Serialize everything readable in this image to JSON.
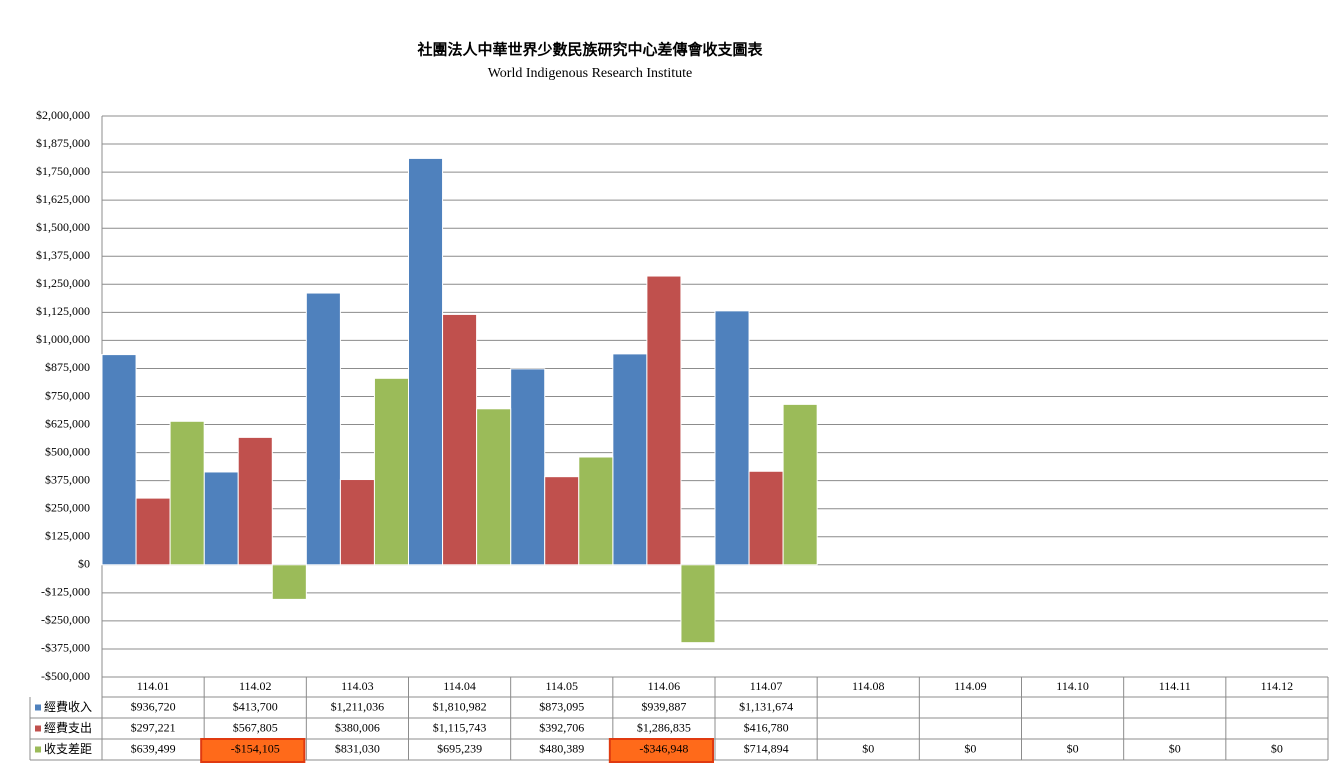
{
  "chart_data": {
    "type": "bar",
    "title": "社團法人中華世界少數民族研究中心差傳會收支圖表",
    "subtitle": "World Indigenous Research Institute",
    "categories": [
      "114.01",
      "114.02",
      "114.03",
      "114.04",
      "114.05",
      "114.06",
      "114.07",
      "114.08",
      "114.09",
      "114.10",
      "114.11",
      "114.12"
    ],
    "series": [
      {
        "name": "經費收入",
        "color": "#4f81bd",
        "values": [
          936720,
          413700,
          1211036,
          1810982,
          873095,
          939887,
          1131674,
          null,
          null,
          null,
          null,
          null
        ],
        "value_labels": [
          "$936,720",
          "$413,700",
          "$1,211,036",
          "$1,810,982",
          "$873,095",
          "$939,887",
          "$1,131,674",
          null,
          null,
          null,
          null,
          null
        ]
      },
      {
        "name": "經費支出",
        "color": "#c0504d",
        "values": [
          297221,
          567805,
          380006,
          1115743,
          392706,
          1286835,
          416780,
          null,
          null,
          null,
          null,
          null
        ],
        "value_labels": [
          "$297,221",
          "$567,805",
          "$380,006",
          "$1,115,743",
          "$392,706",
          "$1,286,835",
          "$416,780",
          null,
          null,
          null,
          null,
          null
        ]
      },
      {
        "name": "收支差距",
        "color": "#9bbb59",
        "values": [
          639499,
          -154105,
          831030,
          695239,
          480389,
          -346948,
          714894,
          0,
          0,
          0,
          0,
          0
        ],
        "value_labels": [
          "$639,499",
          "-$154,105",
          "$831,030",
          "$695,239",
          "$480,389",
          "-$346,948",
          "$714,894",
          "$0",
          "$0",
          "$0",
          "$0",
          "$0"
        ]
      }
    ],
    "ylim": [
      -500000,
      2000000
    ],
    "yticks": [
      {
        "value": -500000,
        "label": "-$500,000"
      },
      {
        "value": -375000,
        "label": "-$375,000"
      },
      {
        "value": -250000,
        "label": "-$250,000"
      },
      {
        "value": -125000,
        "label": "-$125,000"
      },
      {
        "value": 0,
        "label": "$0"
      },
      {
        "value": 125000,
        "label": "$125,000"
      },
      {
        "value": 250000,
        "label": "$250,000"
      },
      {
        "value": 375000,
        "label": "$375,000"
      },
      {
        "value": 500000,
        "label": "$500,000"
      },
      {
        "value": 625000,
        "label": "$625,000"
      },
      {
        "value": 750000,
        "label": "$750,000"
      },
      {
        "value": 875000,
        "label": "$875,000"
      },
      {
        "value": 1000000,
        "label": "$1,000,000"
      },
      {
        "value": 1125000,
        "label": "$1,125,000"
      },
      {
        "value": 1250000,
        "label": "$1,250,000"
      },
      {
        "value": 1375000,
        "label": "$1,375,000"
      },
      {
        "value": 1500000,
        "label": "$1,500,000"
      },
      {
        "value": 1625000,
        "label": "$1,625,000"
      },
      {
        "value": 1750000,
        "label": "$1,750,000"
      },
      {
        "value": 1875000,
        "label": "$1,875,000"
      },
      {
        "value": 2000000,
        "label": "$2,000,000"
      }
    ],
    "grid": true
  }
}
